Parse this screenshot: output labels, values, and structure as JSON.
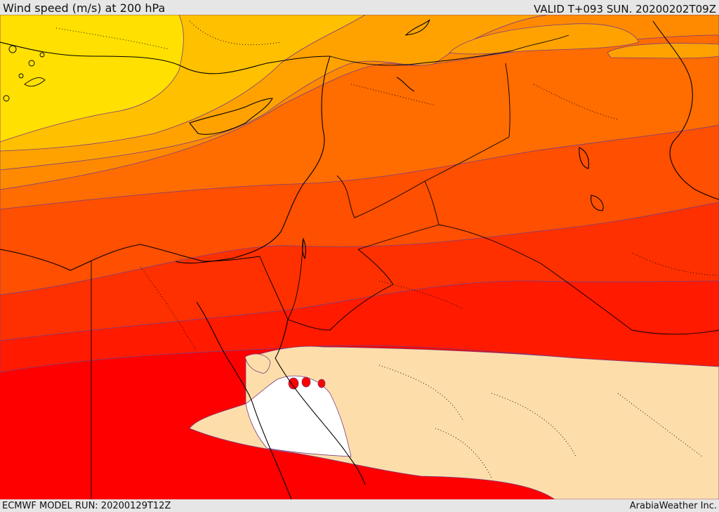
{
  "header": {
    "title": "Wind speed (m/s) at 200 hPa",
    "valid_time": "VALID T+093 SUN. 20200202T09Z"
  },
  "footer": {
    "model_run": "ECMWF MODEL RUN: 20200129T12Z",
    "credit": "ArabiaWeather Inc."
  },
  "map": {
    "variable": "wind speed",
    "level": "200 hPa",
    "colors": {
      "band_lowest": "#ffe000",
      "band_1": "#ffc000",
      "band_2": "#ffa200",
      "band_3": "#ff8a00",
      "band_4": "#ff6c00",
      "band_5": "#ff4f00",
      "band_6": "#ff3000",
      "band_7": "#ff1a00",
      "band_highest": "#ff0000",
      "calm_region": "#fddeaa",
      "calm_core": "#ffffff",
      "contour_line": "#7a3d80",
      "coastline": "#000000",
      "borders": "#000000"
    }
  }
}
